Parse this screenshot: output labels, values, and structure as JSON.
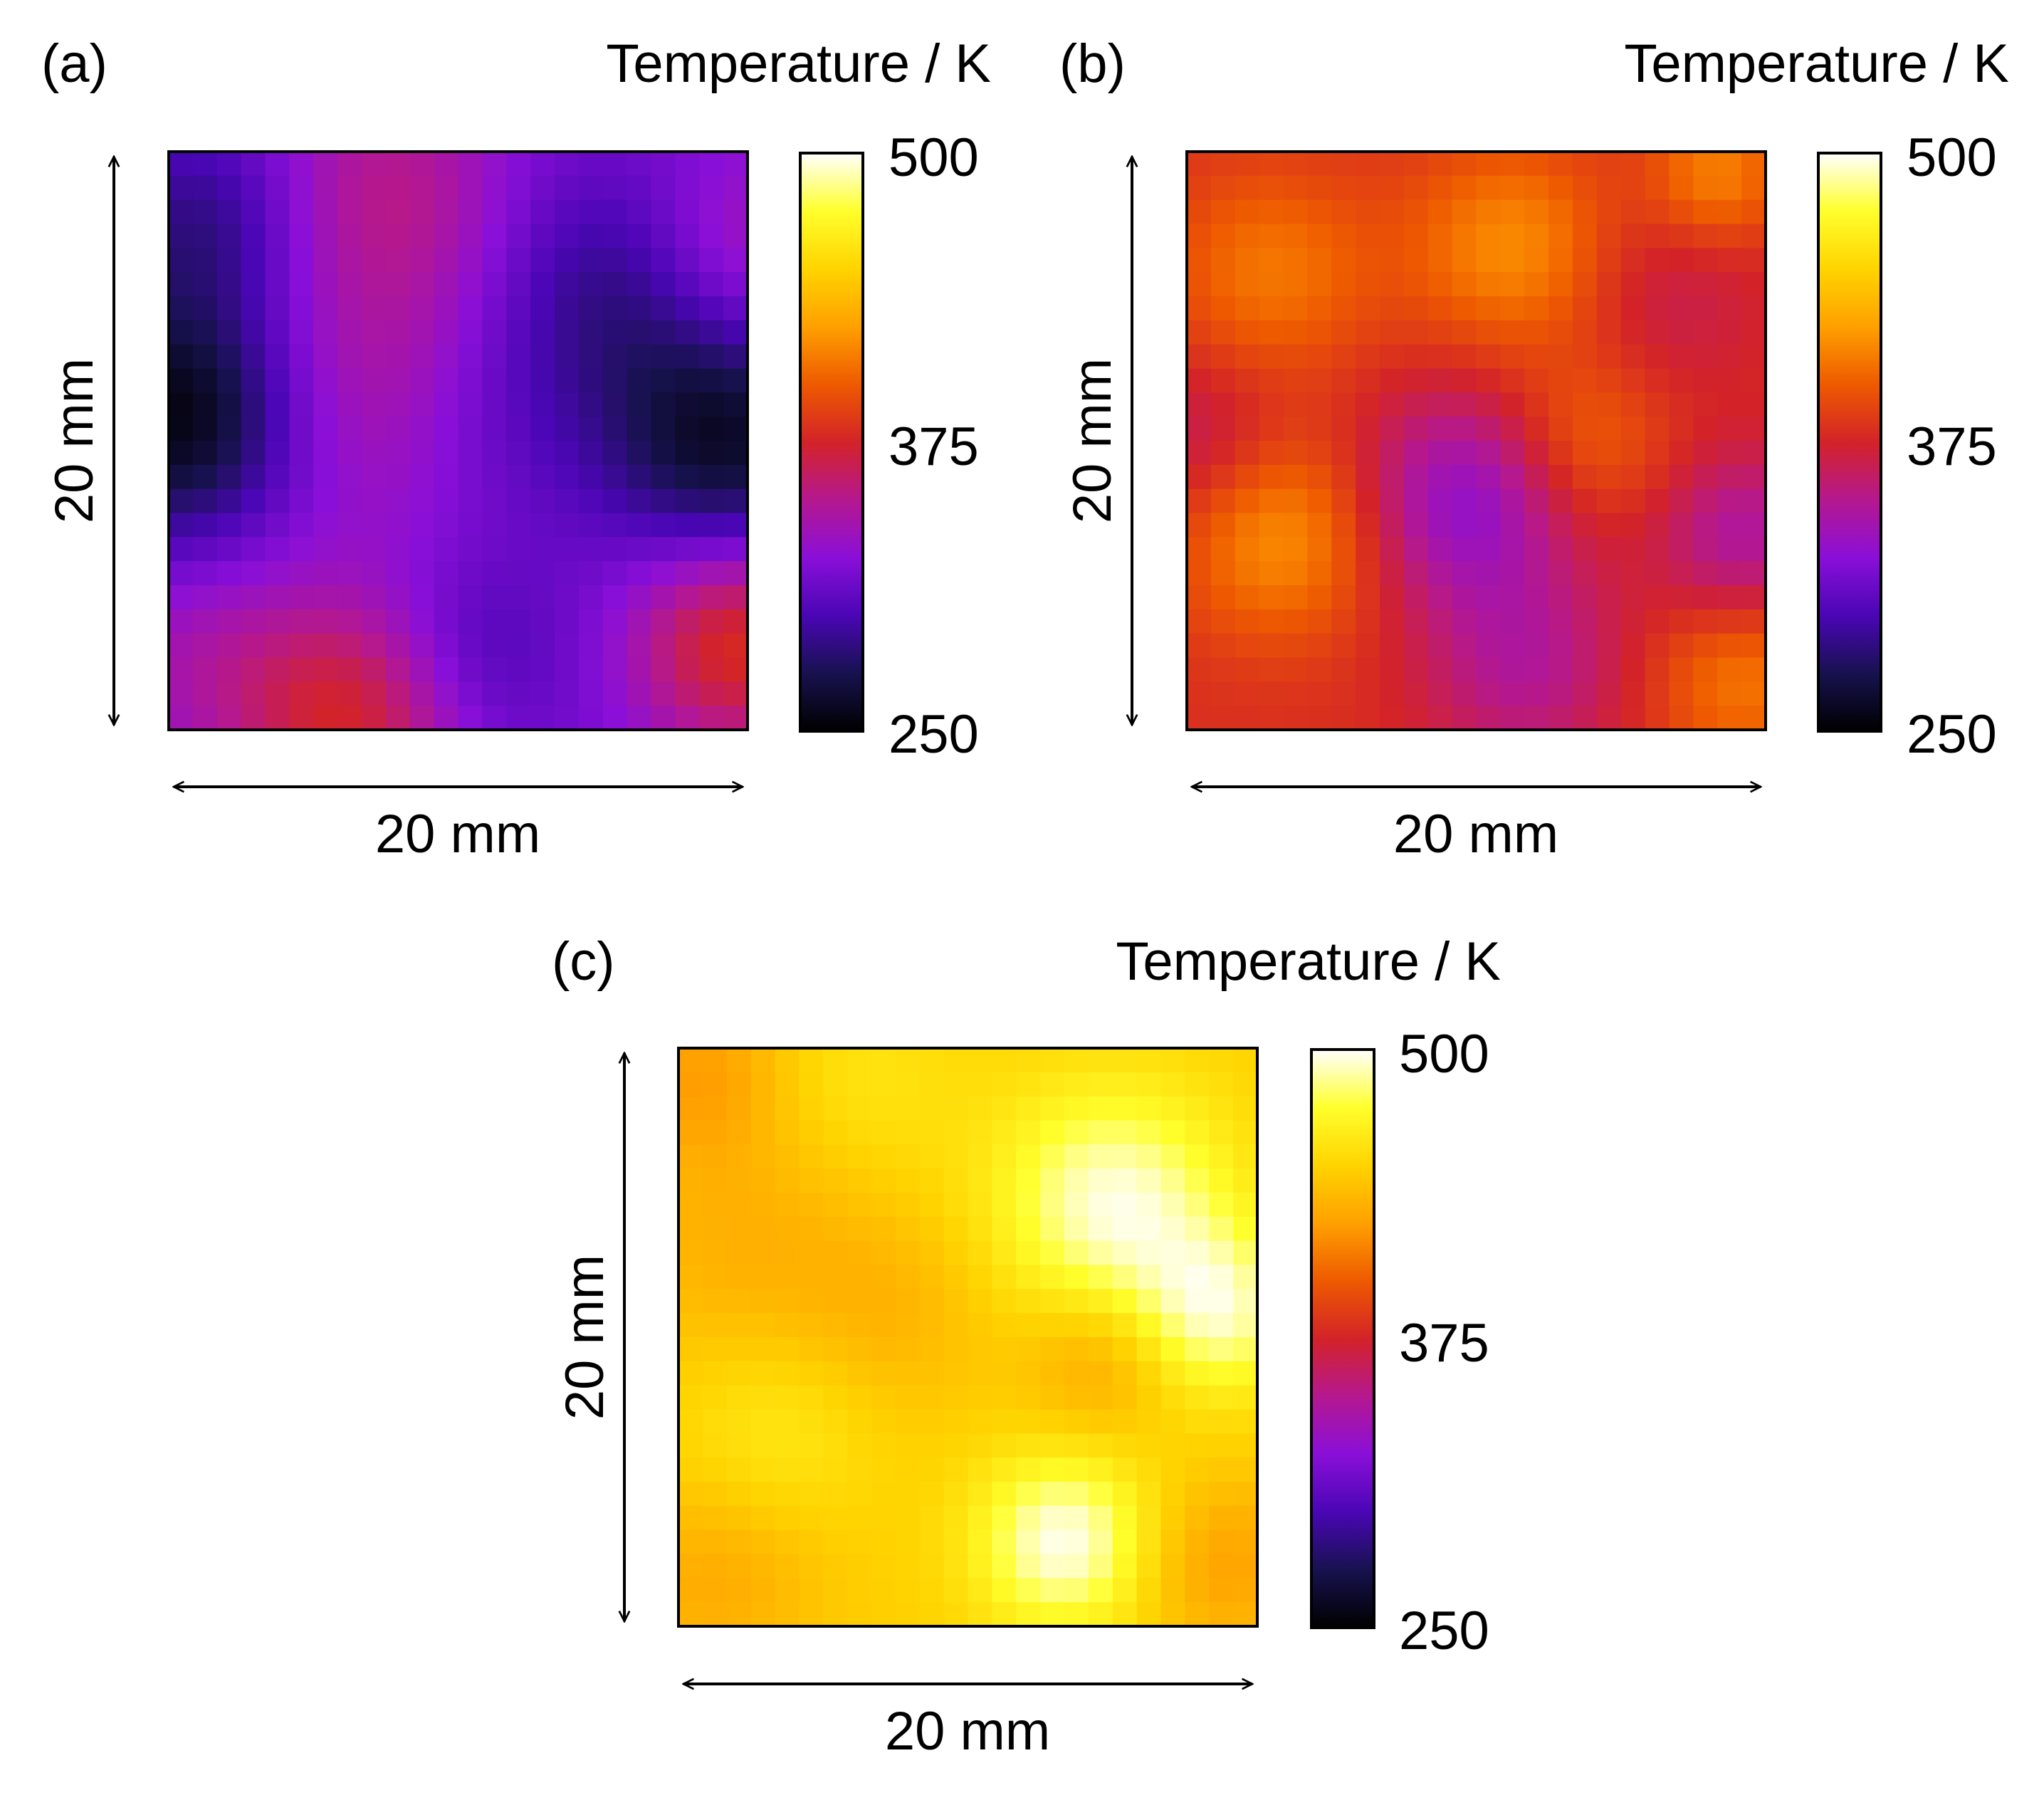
{
  "colormap_stops": [
    "#000000",
    "#17124f",
    "#4a06b5",
    "#8a0fd8",
    "#b5188f",
    "#d32328",
    "#ee5a00",
    "#ffa000",
    "#ffd400",
    "#ffff2c",
    "#ffffff"
  ],
  "chart_data": [
    {
      "type": "heatmap",
      "panel_label": "(a)",
      "colorbar_title": "Temperature / K",
      "xlabel": "20 mm",
      "ylabel": "20 mm",
      "colorbar_ticks": [
        "500",
        "375",
        "250"
      ],
      "zlim": [
        250,
        500
      ],
      "grid_size": [
        24,
        24
      ],
      "field": {
        "base": 318,
        "features": [
          {
            "x": 0.5,
            "y": 11,
            "value": -65,
            "sigma": 3.6
          },
          {
            "x": 1.5,
            "y": 3,
            "value": -30,
            "sigma": 3
          },
          {
            "x": 12.5,
            "y": 10.5,
            "value": -52,
            "sigma": 4
          },
          {
            "x": 23,
            "y": 12,
            "value": -55,
            "sigma": 3.5
          },
          {
            "x": 18.5,
            "y": 5.5,
            "value": -30,
            "sigma": 3.5
          },
          {
            "x": 12.5,
            "y": 21,
            "value": -22,
            "sigma": 3
          },
          {
            "x": 10.5,
            "y": 10,
            "value": 62,
            "sigma": 4.5
          },
          {
            "x": 7.5,
            "y": 23.5,
            "value": 58,
            "sigma": 3.5
          },
          {
            "x": 23.5,
            "y": 20.5,
            "value": 62,
            "sigma": 3
          },
          {
            "x": 9,
            "y": 1,
            "value": 28,
            "sigma": 3.5
          },
          {
            "x": 23.5,
            "y": 4,
            "value": 25,
            "sigma": 3
          },
          {
            "x": 1,
            "y": 21,
            "value": 18,
            "sigma": 3
          }
        ]
      }
    },
    {
      "type": "heatmap",
      "panel_label": "(b)",
      "colorbar_title": "Temperature / K",
      "xlabel": "20 mm",
      "ylabel": "20 mm",
      "colorbar_ticks": [
        "500",
        "375",
        "250"
      ],
      "zlim": [
        250,
        500
      ],
      "grid_size": [
        24,
        24
      ],
      "field": {
        "base": 380,
        "features": [
          {
            "x": 11.5,
            "y": 14.5,
            "value": -50,
            "sigma": 3.2
          },
          {
            "x": 23,
            "y": 16,
            "value": -35,
            "sigma": 2.5
          },
          {
            "x": 14,
            "y": 21.5,
            "value": -30,
            "sigma": 3
          },
          {
            "x": 0.5,
            "y": 12,
            "value": -20,
            "sigma": 2.5
          },
          {
            "x": 4,
            "y": 16,
            "value": 40,
            "sigma": 3
          },
          {
            "x": 3.5,
            "y": 5,
            "value": 30,
            "sigma": 3
          },
          {
            "x": 13.5,
            "y": 4,
            "value": 38,
            "sigma": 3
          },
          {
            "x": 22,
            "y": 1,
            "value": 35,
            "sigma": 2
          },
          {
            "x": 16.5,
            "y": 12,
            "value": 25,
            "sigma": 2.5
          },
          {
            "x": 23,
            "y": 22,
            "value": 30,
            "sigma": 2.5
          },
          {
            "x": 20,
            "y": 6,
            "value": -15,
            "sigma": 3
          }
        ]
      }
    },
    {
      "type": "heatmap",
      "panel_label": "(c)",
      "colorbar_title": "Temperature / K",
      "xlabel": "20 mm",
      "ylabel": "20 mm",
      "colorbar_ticks": [
        "500",
        "375",
        "250"
      ],
      "zlim": [
        250,
        500
      ],
      "grid_size": [
        24,
        24
      ],
      "field": {
        "base": 448,
        "features": [
          {
            "x": 18,
            "y": 6.5,
            "value": 48,
            "sigma": 3.5
          },
          {
            "x": 22.5,
            "y": 11,
            "value": 40,
            "sigma": 2.5
          },
          {
            "x": 16,
            "y": 20.5,
            "value": 50,
            "sigma": 2.6
          },
          {
            "x": 17.5,
            "y": 13,
            "value": -22,
            "sigma": 2.2
          },
          {
            "x": 1,
            "y": 1,
            "value": -22,
            "sigma": 2.5
          },
          {
            "x": 2.5,
            "y": 8,
            "value": -15,
            "sigma": 4
          },
          {
            "x": 1.5,
            "y": 22,
            "value": -18,
            "sigma": 3
          },
          {
            "x": 22.5,
            "y": 21.5,
            "value": -22,
            "sigma": 2.5
          },
          {
            "x": 9,
            "y": 11,
            "value": -12,
            "sigma": 3
          },
          {
            "x": 4,
            "y": 16,
            "value": 15,
            "sigma": 3
          },
          {
            "x": 7.5,
            "y": 1.5,
            "value": 12,
            "sigma": 3
          }
        ]
      }
    }
  ]
}
